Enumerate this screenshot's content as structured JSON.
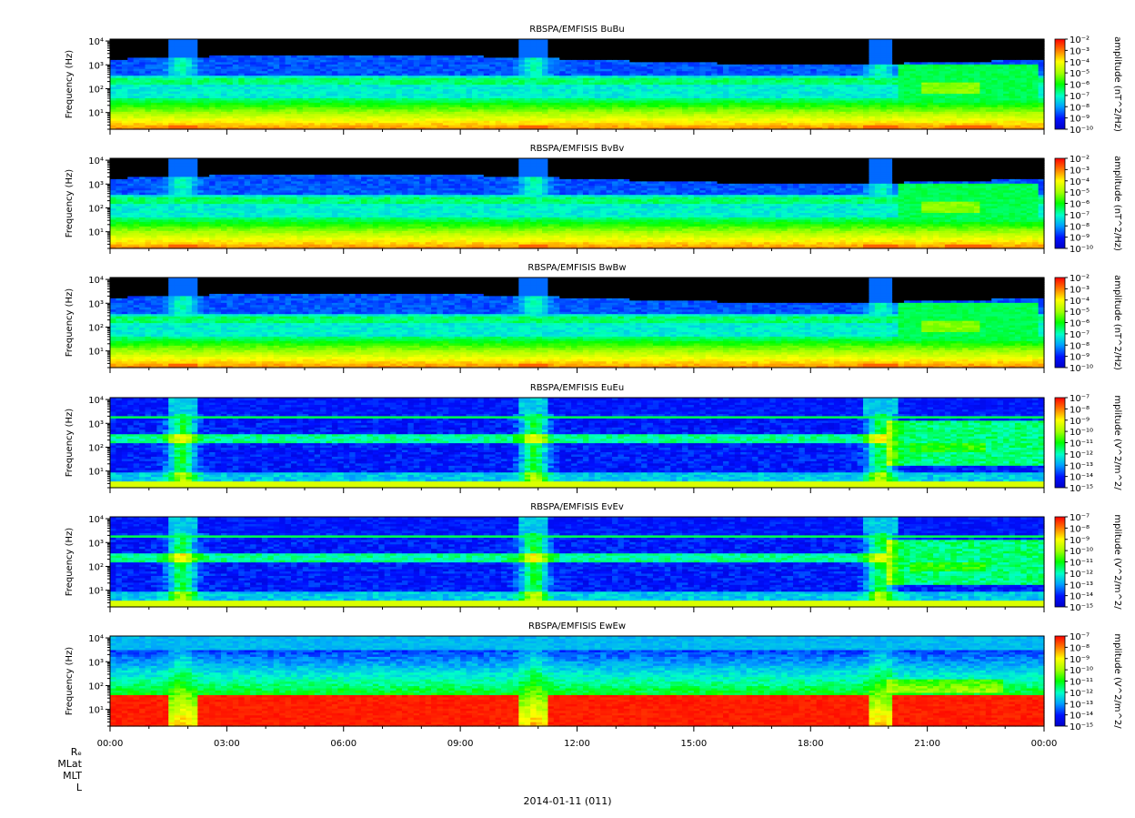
{
  "figure": {
    "date_label": "2014-01-11 (011)",
    "extra_axes": [
      "Rₑ",
      "MLat",
      "MLT",
      "L"
    ]
  },
  "chart_data": [
    {
      "type": "heatmap",
      "title": "RBSPA/EMFISIS  BuBu",
      "ylabel": "Frequency (Hz)",
      "ytick_labels": [
        "10¹",
        "10²",
        "10³",
        "10⁴"
      ],
      "ylim": [
        2,
        12000
      ],
      "yscale": "log",
      "xtick_labels": [
        "00:00",
        "03:00",
        "06:00",
        "09:00",
        "12:00",
        "15:00",
        "18:00",
        "21:00",
        "00:00"
      ],
      "colorbar": {
        "label": "amplitude (nT^2/Hz)",
        "tick_labels": [
          "10⁻²",
          "10⁻³",
          "10⁻⁴",
          "10⁻⁵",
          "10⁻⁶",
          "10⁻⁷",
          "10⁻⁸",
          "10⁻⁹",
          "10⁻¹⁰"
        ],
        "range_exponents": [
          -10,
          -2
        ]
      },
      "variant": "b"
    },
    {
      "type": "heatmap",
      "title": "RBSPA/EMFISIS  BvBv",
      "ylabel": "Frequency (Hz)",
      "ytick_labels": [
        "10¹",
        "10²",
        "10³",
        "10⁴"
      ],
      "ylim": [
        2,
        12000
      ],
      "yscale": "log",
      "xtick_labels": [
        "00:00",
        "03:00",
        "06:00",
        "09:00",
        "12:00",
        "15:00",
        "18:00",
        "21:00",
        "00:00"
      ],
      "colorbar": {
        "label": "amplitude (nT^2/Hz)",
        "tick_labels": [
          "10⁻²",
          "10⁻³",
          "10⁻⁴",
          "10⁻⁵",
          "10⁻⁶",
          "10⁻⁷",
          "10⁻⁸",
          "10⁻⁹",
          "10⁻¹⁰"
        ],
        "range_exponents": [
          -10,
          -2
        ]
      },
      "variant": "b"
    },
    {
      "type": "heatmap",
      "title": "RBSPA/EMFISIS  BwBw",
      "ylabel": "Frequency (Hz)",
      "ytick_labels": [
        "10¹",
        "10²",
        "10³",
        "10⁴"
      ],
      "ylim": [
        2,
        12000
      ],
      "yscale": "log",
      "xtick_labels": [
        "00:00",
        "03:00",
        "06:00",
        "09:00",
        "12:00",
        "15:00",
        "18:00",
        "21:00",
        "00:00"
      ],
      "colorbar": {
        "label": "amplitude (nT^2/Hz)",
        "tick_labels": [
          "10⁻²",
          "10⁻³",
          "10⁻⁴",
          "10⁻⁵",
          "10⁻⁶",
          "10⁻⁷",
          "10⁻⁸",
          "10⁻⁹",
          "10⁻¹⁰"
        ],
        "range_exponents": [
          -10,
          -2
        ]
      },
      "variant": "b"
    },
    {
      "type": "heatmap",
      "title": "RBSPA/EMFISIS  EuEu",
      "ylabel": "Frequency (Hz)",
      "ytick_labels": [
        "10¹",
        "10²",
        "10³",
        "10⁴"
      ],
      "ylim": [
        2,
        12000
      ],
      "yscale": "log",
      "xtick_labels": [
        "00:00",
        "03:00",
        "06:00",
        "09:00",
        "12:00",
        "15:00",
        "18:00",
        "21:00",
        "00:00"
      ],
      "colorbar": {
        "label": "mplitude (V^2/m^2/",
        "tick_labels": [
          "10⁻⁷",
          "10⁻⁸",
          "10⁻⁹",
          "10⁻¹⁰",
          "10⁻¹¹",
          "10⁻¹²",
          "10⁻¹³",
          "10⁻¹⁴",
          "10⁻¹⁵"
        ],
        "range_exponents": [
          -15,
          -7
        ]
      },
      "variant": "e"
    },
    {
      "type": "heatmap",
      "title": "RBSPA/EMFISIS  EvEv",
      "ylabel": "Frequency (Hz)",
      "ytick_labels": [
        "10¹",
        "10²",
        "10³",
        "10⁴"
      ],
      "ylim": [
        2,
        12000
      ],
      "yscale": "log",
      "xtick_labels": [
        "00:00",
        "03:00",
        "06:00",
        "09:00",
        "12:00",
        "15:00",
        "18:00",
        "21:00",
        "00:00"
      ],
      "colorbar": {
        "label": "mplitude (V^2/m^2/",
        "tick_labels": [
          "10⁻⁷",
          "10⁻⁸",
          "10⁻⁹",
          "10⁻¹⁰",
          "10⁻¹¹",
          "10⁻¹²",
          "10⁻¹³",
          "10⁻¹⁴",
          "10⁻¹⁵"
        ],
        "range_exponents": [
          -15,
          -7
        ]
      },
      "variant": "e"
    },
    {
      "type": "heatmap",
      "title": "RBSPA/EMFISIS  EwEw",
      "ylabel": "Frequency (Hz)",
      "ytick_labels": [
        "10¹",
        "10²",
        "10³",
        "10⁴"
      ],
      "ylim": [
        2,
        12000
      ],
      "yscale": "log",
      "xtick_labels": [
        "00:00",
        "03:00",
        "06:00",
        "09:00",
        "12:00",
        "15:00",
        "18:00",
        "21:00",
        "00:00"
      ],
      "colorbar": {
        "label": "mplitude (V^2/m^2/",
        "tick_labels": [
          "10⁻⁷",
          "10⁻⁸",
          "10⁻⁹",
          "10⁻¹⁰",
          "10⁻¹¹",
          "10⁻¹²",
          "10⁻¹³",
          "10⁻¹⁴",
          "10⁻¹⁵"
        ],
        "range_exponents": [
          -15,
          -7
        ]
      },
      "variant": "ew"
    }
  ]
}
